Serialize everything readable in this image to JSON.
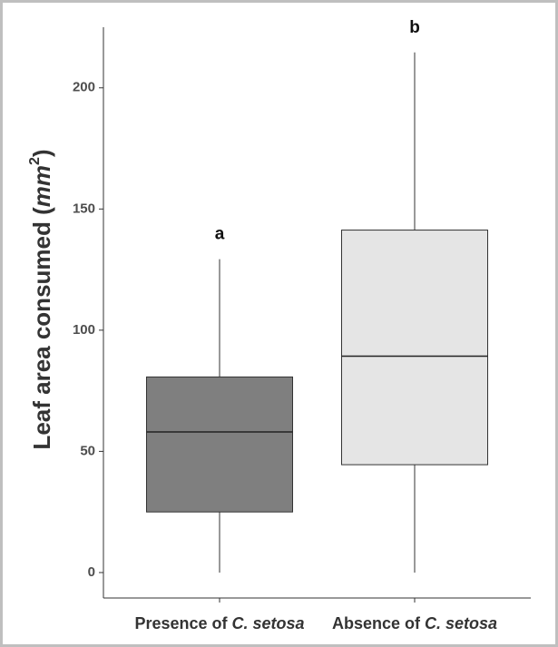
{
  "chart_data": {
    "type": "box",
    "y_label": [
      "Leaf area consumed (",
      "mm",
      "2",
      ")"
    ],
    "categories": [
      [
        "Presence of ",
        "C. setosa"
      ],
      [
        "Absence of ",
        "C. setosa"
      ]
    ],
    "boxes": [
      {
        "min": 0,
        "q1": 25,
        "median": 58,
        "q3": 80.7,
        "max": 129.3,
        "color": "#7f7f7f",
        "label": "a"
      },
      {
        "min": 0,
        "q1": 44.5,
        "median": 89.3,
        "q3": 141.3,
        "max": 214.6,
        "color": "#e5e5e5",
        "label": "b"
      }
    ],
    "ylim": [
      -10.5,
      225
    ],
    "yticks": [
      0,
      50,
      100,
      150,
      200
    ]
  }
}
